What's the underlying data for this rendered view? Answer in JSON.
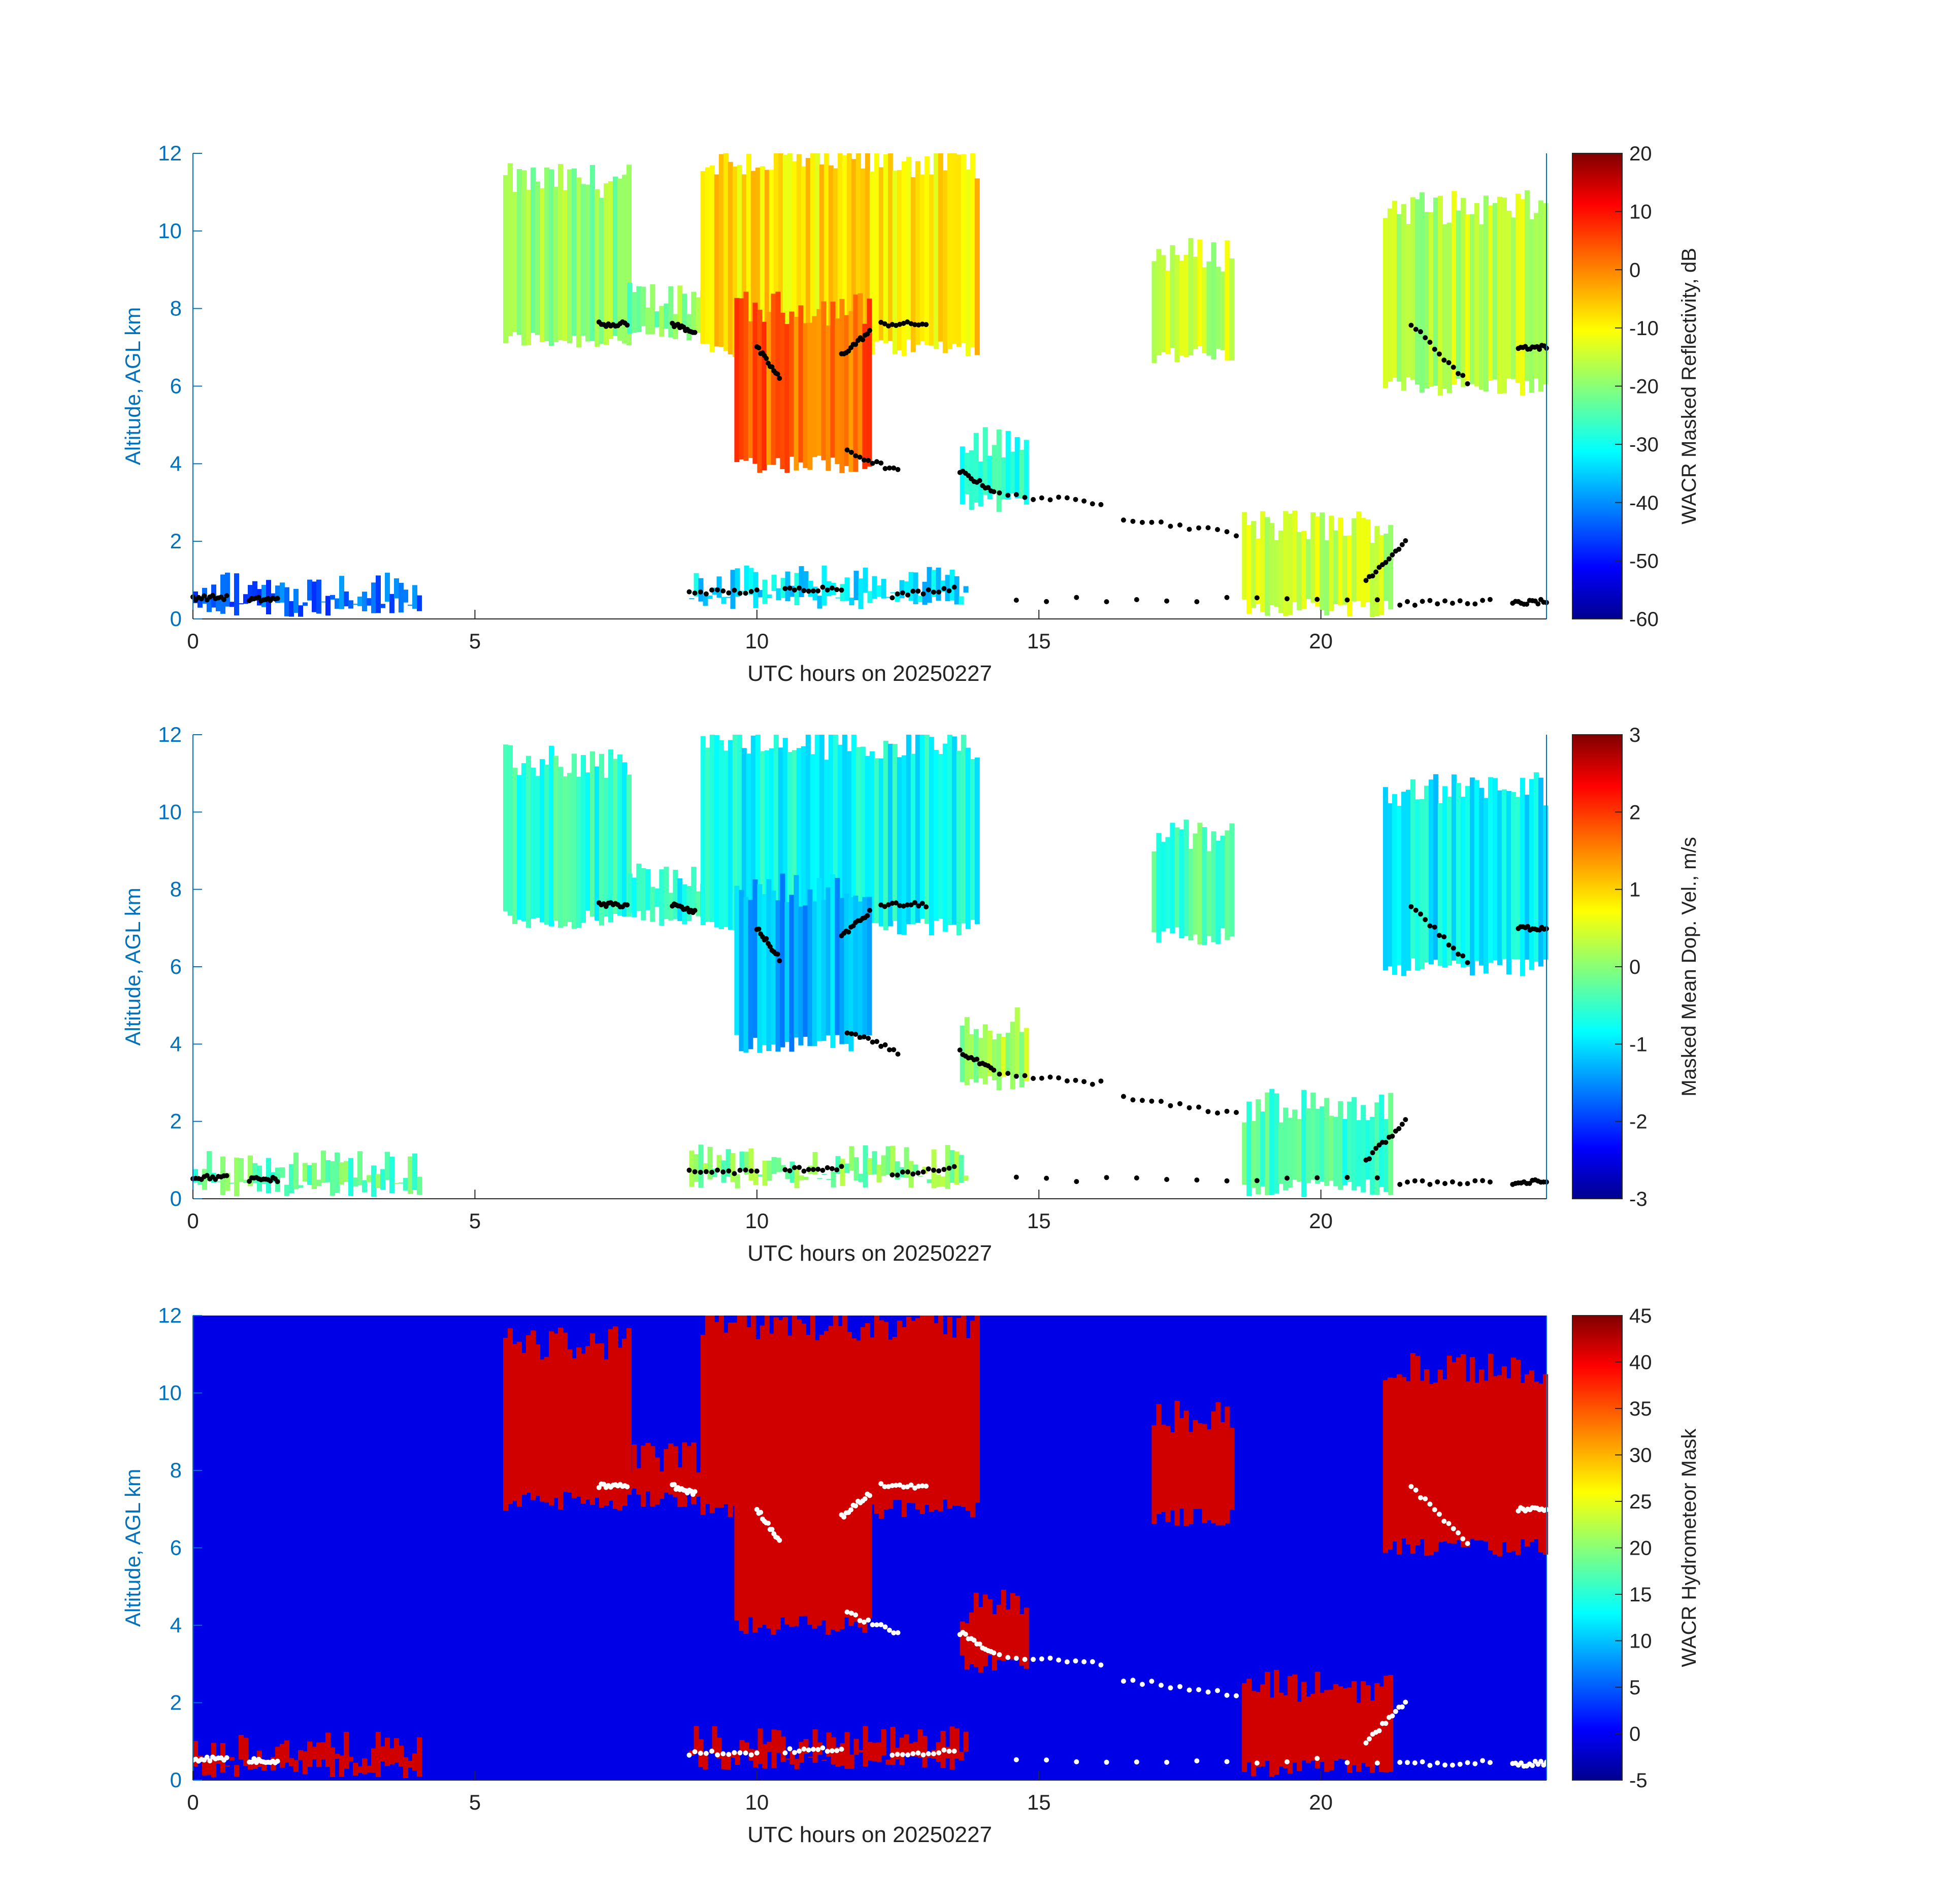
{
  "chart_data": [
    {
      "type": "heatmap",
      "title": "",
      "xlabel": "UTC hours on 20250227",
      "ylabel": "Altitude, AGL km",
      "xlim": [
        0,
        24
      ],
      "ylim": [
        0,
        12
      ],
      "x_ticks": [
        0,
        5,
        10,
        15,
        20
      ],
      "y_ticks": [
        0,
        2,
        4,
        6,
        8,
        10,
        12
      ],
      "colorbar": {
        "label": "WACR Masked Reflectivity, dB",
        "range": [
          -60,
          20
        ],
        "ticks": [
          -60,
          -50,
          -40,
          -30,
          -20,
          -10,
          0,
          10,
          20
        ],
        "colormap": "jet"
      },
      "background": "#ffffff",
      "cloud_regions": [
        {
          "x": [
            5.5,
            7.7
          ],
          "y": [
            7.2,
            11.3
          ],
          "value": -18
        },
        {
          "x": [
            7.7,
            9.0
          ],
          "y": [
            7.3,
            8.3
          ],
          "value": -20
        },
        {
          "x": [
            9.0,
            13.9
          ],
          "y": [
            7.0,
            11.8
          ],
          "value": -8
        },
        {
          "x": [
            9.6,
            12.0
          ],
          "y": [
            4.0,
            8.0
          ],
          "value": 2
        },
        {
          "x": [
            17.0,
            18.4
          ],
          "y": [
            6.8,
            9.4
          ],
          "value": -15
        },
        {
          "x": [
            21.1,
            24.0
          ],
          "y": [
            6.0,
            10.6
          ],
          "value": -15
        },
        {
          "x": [
            13.6,
            14.8
          ],
          "y": [
            3.0,
            4.5
          ],
          "value": -28
        },
        {
          "x": [
            18.6,
            21.2
          ],
          "y": [
            0.3,
            2.4
          ],
          "value": -15
        },
        {
          "x": [
            0.0,
            4.0
          ],
          "y": [
            0.3,
            0.8
          ],
          "value": -42
        },
        {
          "x": [
            8.8,
            13.7
          ],
          "y": [
            0.5,
            0.95
          ],
          "value": -32
        }
      ],
      "cloud_base_points": [
        {
          "x": [
            7.2,
            7.7
          ],
          "y": [
            7.6,
            7.6
          ]
        },
        {
          "x": [
            8.5,
            8.9
          ],
          "y": [
            7.6,
            7.4
          ]
        },
        {
          "x": [
            10.0,
            10.4
          ],
          "y": [
            7.0,
            6.2
          ]
        },
        {
          "x": [
            11.5,
            12.0
          ],
          "y": [
            6.8,
            7.4
          ]
        },
        {
          "x": [
            12.2,
            13.0
          ],
          "y": [
            7.6,
            7.6
          ]
        },
        {
          "x": [
            11.6,
            12.5
          ],
          "y": [
            4.3,
            3.8
          ]
        },
        {
          "x": [
            13.6,
            14.2
          ],
          "y": [
            3.8,
            3.3
          ]
        },
        {
          "x": [
            14.3,
            16.1
          ],
          "y": [
            3.2,
            3.0
          ]
        },
        {
          "x": [
            16.5,
            18.5
          ],
          "y": [
            2.6,
            2.2
          ]
        },
        {
          "x": [
            21.6,
            22.6
          ],
          "y": [
            7.6,
            6.1
          ]
        },
        {
          "x": [
            23.5,
            24.0
          ],
          "y": [
            7.0,
            7.0
          ]
        },
        {
          "x": [
            0.0,
            0.6
          ],
          "y": [
            0.55,
            0.55
          ]
        },
        {
          "x": [
            1.0,
            1.5
          ],
          "y": [
            0.5,
            0.5
          ]
        },
        {
          "x": [
            8.8,
            10.0
          ],
          "y": [
            0.7,
            0.7
          ]
        },
        {
          "x": [
            10.5,
            11.5
          ],
          "y": [
            0.75,
            0.8
          ]
        },
        {
          "x": [
            12.4,
            13.5
          ],
          "y": [
            0.6,
            0.8
          ]
        },
        {
          "x": [
            14.6,
            21.0
          ],
          "y": [
            0.5,
            0.5
          ]
        },
        {
          "x": [
            20.8,
            21.5
          ],
          "y": [
            1.0,
            2.0
          ]
        },
        {
          "x": [
            21.4,
            23.0
          ],
          "y": [
            0.4,
            0.45
          ]
        },
        {
          "x": [
            23.4,
            24.0
          ],
          "y": [
            0.4,
            0.45
          ]
        }
      ]
    },
    {
      "type": "heatmap",
      "title": "",
      "xlabel": "UTC hours on 20250227",
      "ylabel": "Altitude, AGL km",
      "xlim": [
        0,
        24
      ],
      "ylim": [
        0,
        12
      ],
      "x_ticks": [
        0,
        5,
        10,
        15,
        20
      ],
      "y_ticks": [
        0,
        2,
        4,
        6,
        8,
        10,
        12
      ],
      "colorbar": {
        "label": "Masked Mean Dop. Vel., m/s",
        "range": [
          -3,
          3
        ],
        "ticks": [
          -3,
          -2,
          -1,
          0,
          1,
          2,
          3
        ],
        "colormap": "jet"
      },
      "background": "#ffffff",
      "cloud_regions": [
        {
          "x": [
            5.5,
            7.7
          ],
          "y": [
            7.2,
            11.3
          ],
          "value": -0.5
        },
        {
          "x": [
            7.7,
            9.0
          ],
          "y": [
            7.3,
            8.3
          ],
          "value": -0.6
        },
        {
          "x": [
            9.0,
            13.9
          ],
          "y": [
            7.0,
            11.8
          ],
          "value": -0.7
        },
        {
          "x": [
            9.6,
            12.0
          ],
          "y": [
            4.0,
            8.0
          ],
          "value": -1.2
        },
        {
          "x": [
            17.0,
            18.4
          ],
          "y": [
            6.8,
            9.4
          ],
          "value": -0.3
        },
        {
          "x": [
            21.1,
            24.0
          ],
          "y": [
            6.0,
            10.6
          ],
          "value": -0.8
        },
        {
          "x": [
            13.6,
            14.8
          ],
          "y": [
            3.0,
            4.5
          ],
          "value": 0.2
        },
        {
          "x": [
            18.6,
            21.2
          ],
          "y": [
            0.3,
            2.4
          ],
          "value": -0.3
        },
        {
          "x": [
            0.0,
            4.0
          ],
          "y": [
            0.3,
            0.8
          ],
          "value": -0.2
        },
        {
          "x": [
            8.8,
            13.7
          ],
          "y": [
            0.5,
            0.95
          ],
          "value": 0.0
        }
      ],
      "cloud_base_points": [
        {
          "x": [
            7.2,
            7.7
          ],
          "y": [
            7.6,
            7.6
          ]
        },
        {
          "x": [
            8.5,
            8.9
          ],
          "y": [
            7.6,
            7.4
          ]
        },
        {
          "x": [
            10.0,
            10.4
          ],
          "y": [
            7.0,
            6.2
          ]
        },
        {
          "x": [
            11.5,
            12.0
          ],
          "y": [
            6.8,
            7.4
          ]
        },
        {
          "x": [
            12.2,
            13.0
          ],
          "y": [
            7.6,
            7.6
          ]
        },
        {
          "x": [
            11.6,
            12.5
          ],
          "y": [
            4.3,
            3.8
          ]
        },
        {
          "x": [
            13.6,
            14.2
          ],
          "y": [
            3.8,
            3.3
          ]
        },
        {
          "x": [
            14.3,
            16.1
          ],
          "y": [
            3.2,
            3.0
          ]
        },
        {
          "x": [
            16.5,
            18.5
          ],
          "y": [
            2.6,
            2.2
          ]
        },
        {
          "x": [
            21.6,
            22.6
          ],
          "y": [
            7.6,
            6.1
          ]
        },
        {
          "x": [
            23.5,
            24.0
          ],
          "y": [
            7.0,
            7.0
          ]
        },
        {
          "x": [
            0.0,
            0.6
          ],
          "y": [
            0.55,
            0.55
          ]
        },
        {
          "x": [
            1.0,
            1.5
          ],
          "y": [
            0.5,
            0.5
          ]
        },
        {
          "x": [
            8.8,
            10.0
          ],
          "y": [
            0.7,
            0.7
          ]
        },
        {
          "x": [
            10.5,
            11.5
          ],
          "y": [
            0.75,
            0.8
          ]
        },
        {
          "x": [
            12.4,
            13.5
          ],
          "y": [
            0.6,
            0.8
          ]
        },
        {
          "x": [
            14.6,
            21.0
          ],
          "y": [
            0.5,
            0.5
          ]
        },
        {
          "x": [
            20.8,
            21.5
          ],
          "y": [
            1.0,
            2.0
          ]
        },
        {
          "x": [
            21.4,
            23.0
          ],
          "y": [
            0.4,
            0.45
          ]
        },
        {
          "x": [
            23.4,
            24.0
          ],
          "y": [
            0.4,
            0.45
          ]
        }
      ]
    },
    {
      "type": "heatmap",
      "title": "",
      "xlabel": "UTC hours on 20250227",
      "ylabel": "Altitude, AGL km",
      "xlim": [
        0,
        24
      ],
      "ylim": [
        0,
        12
      ],
      "x_ticks": [
        0,
        5,
        10,
        15,
        20
      ],
      "y_ticks": [
        0,
        2,
        4,
        6,
        8,
        10,
        12
      ],
      "colorbar": {
        "label": "WACR Hydrometeor Mask",
        "range": [
          -5,
          45
        ],
        "ticks": [
          -5,
          0,
          5,
          10,
          15,
          20,
          25,
          30,
          35,
          40,
          45
        ],
        "colormap": "jet"
      },
      "background_value": 0,
      "cloud_regions": [
        {
          "x": [
            5.5,
            7.7
          ],
          "y": [
            7.2,
            11.3
          ],
          "value": 41
        },
        {
          "x": [
            7.7,
            9.0
          ],
          "y": [
            7.3,
            8.3
          ],
          "value": 41
        },
        {
          "x": [
            9.0,
            13.9
          ],
          "y": [
            7.0,
            11.8
          ],
          "value": 41
        },
        {
          "x": [
            9.6,
            12.0
          ],
          "y": [
            4.0,
            8.0
          ],
          "value": 41
        },
        {
          "x": [
            17.0,
            18.4
          ],
          "y": [
            6.8,
            9.4
          ],
          "value": 41
        },
        {
          "x": [
            21.1,
            24.0
          ],
          "y": [
            6.0,
            10.6
          ],
          "value": 41
        },
        {
          "x": [
            13.6,
            14.8
          ],
          "y": [
            3.0,
            4.5
          ],
          "value": 41
        },
        {
          "x": [
            18.6,
            21.2
          ],
          "y": [
            0.3,
            2.4
          ],
          "value": 41
        },
        {
          "x": [
            0.0,
            4.0
          ],
          "y": [
            0.3,
            0.8
          ],
          "value": 41
        },
        {
          "x": [
            8.8,
            13.7
          ],
          "y": [
            0.5,
            0.95
          ],
          "value": 41
        }
      ],
      "cloud_base_points": [
        {
          "x": [
            7.2,
            7.7
          ],
          "y": [
            7.6,
            7.6
          ]
        },
        {
          "x": [
            8.5,
            8.9
          ],
          "y": [
            7.6,
            7.4
          ]
        },
        {
          "x": [
            10.0,
            10.4
          ],
          "y": [
            7.0,
            6.2
          ]
        },
        {
          "x": [
            11.5,
            12.0
          ],
          "y": [
            6.8,
            7.4
          ]
        },
        {
          "x": [
            12.2,
            13.0
          ],
          "y": [
            7.6,
            7.6
          ]
        },
        {
          "x": [
            11.6,
            12.5
          ],
          "y": [
            4.3,
            3.8
          ]
        },
        {
          "x": [
            13.6,
            14.2
          ],
          "y": [
            3.8,
            3.3
          ]
        },
        {
          "x": [
            14.3,
            16.1
          ],
          "y": [
            3.2,
            3.0
          ]
        },
        {
          "x": [
            16.5,
            18.5
          ],
          "y": [
            2.6,
            2.2
          ]
        },
        {
          "x": [
            21.6,
            22.6
          ],
          "y": [
            7.6,
            6.1
          ]
        },
        {
          "x": [
            23.5,
            24.0
          ],
          "y": [
            7.0,
            7.0
          ]
        },
        {
          "x": [
            0.0,
            0.6
          ],
          "y": [
            0.55,
            0.55
          ]
        },
        {
          "x": [
            1.0,
            1.5
          ],
          "y": [
            0.5,
            0.5
          ]
        },
        {
          "x": [
            8.8,
            10.0
          ],
          "y": [
            0.7,
            0.7
          ]
        },
        {
          "x": [
            10.5,
            11.5
          ],
          "y": [
            0.75,
            0.8
          ]
        },
        {
          "x": [
            12.4,
            13.5
          ],
          "y": [
            0.6,
            0.8
          ]
        },
        {
          "x": [
            14.6,
            21.0
          ],
          "y": [
            0.5,
            0.5
          ]
        },
        {
          "x": [
            20.8,
            21.5
          ],
          "y": [
            1.0,
            2.0
          ]
        },
        {
          "x": [
            21.4,
            23.0
          ],
          "y": [
            0.4,
            0.45
          ]
        },
        {
          "x": [
            23.4,
            24.0
          ],
          "y": [
            0.4,
            0.45
          ]
        }
      ]
    }
  ]
}
